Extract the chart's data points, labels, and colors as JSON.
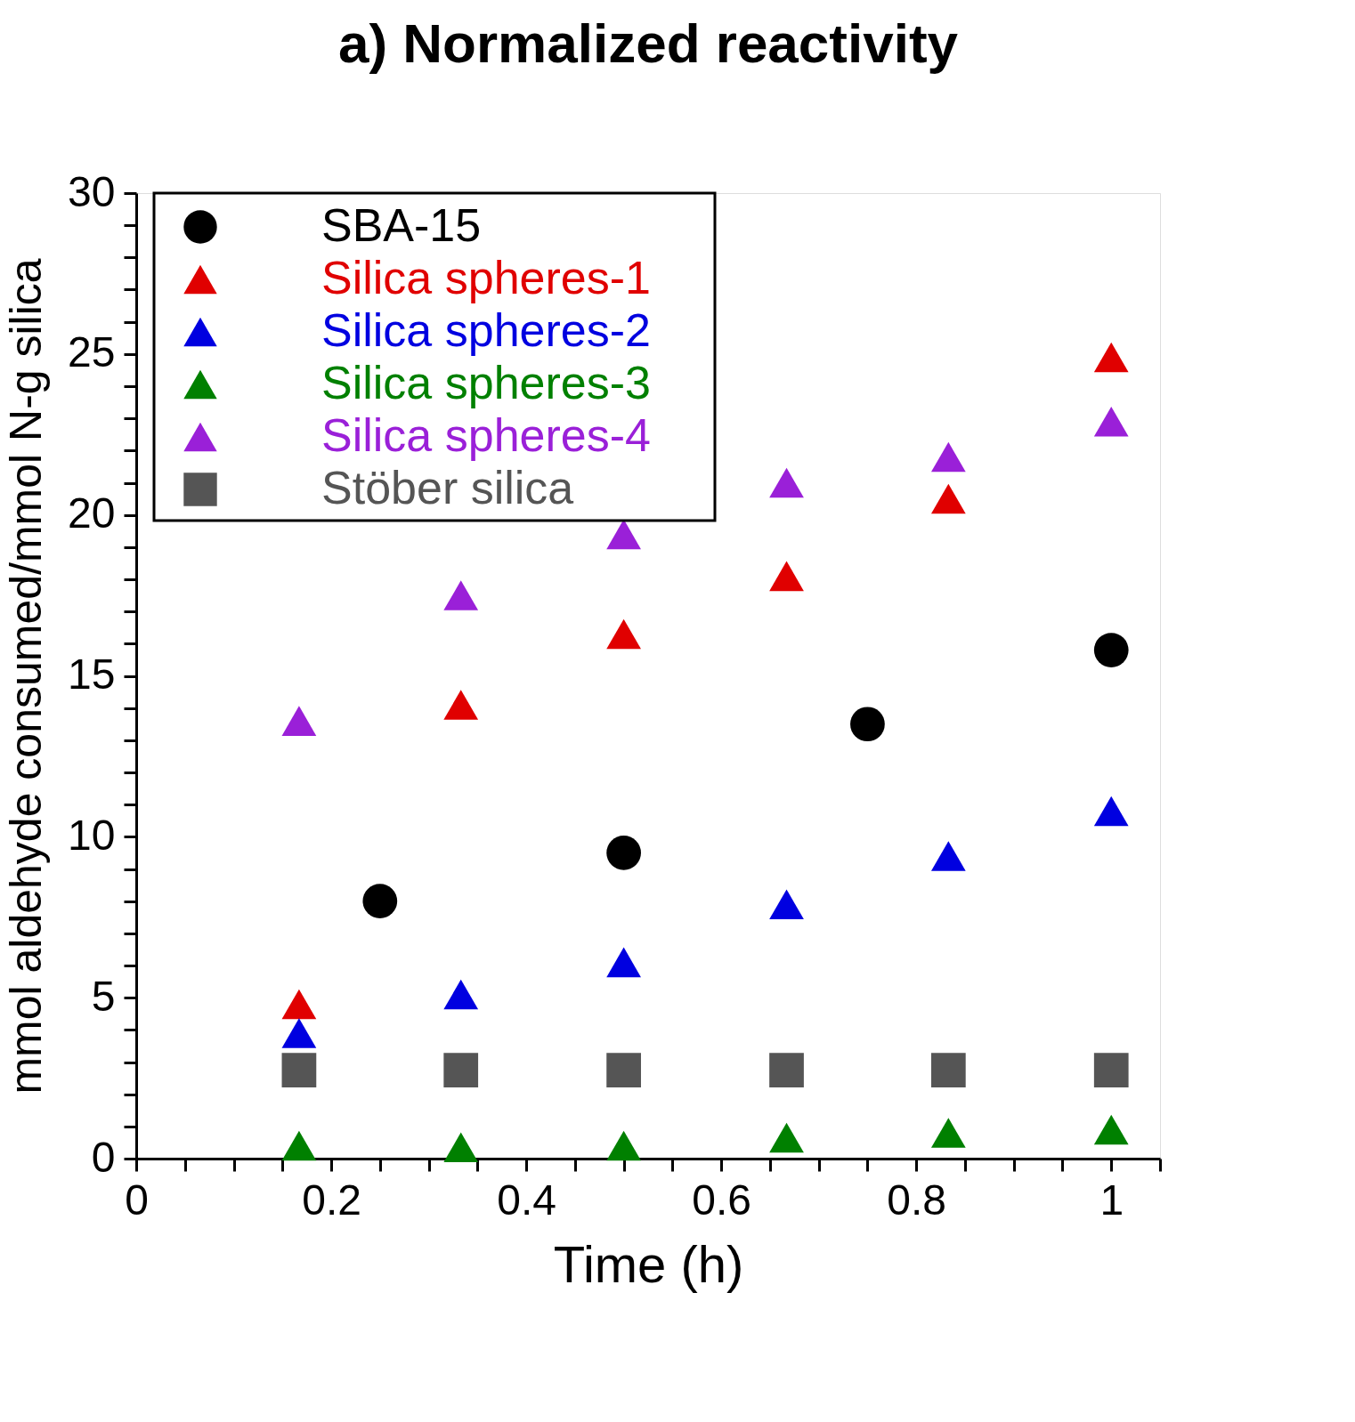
{
  "chart_data": {
    "type": "scatter",
    "title": "a) Normalized reactivity",
    "xlabel": "Time (h)",
    "ylabel": "mmol aldehyde consumed/mmol N-g silica",
    "xlim": [
      0,
      1.05
    ],
    "ylim": [
      0,
      30
    ],
    "xticks": [
      0,
      {
        "value": 0.05,
        "label": null
      },
      {
        "value": 0.1,
        "label": null
      },
      {
        "value": 0.15,
        "label": null
      },
      {
        "value": 0.2,
        "label": "0.2"
      },
      {
        "value": 0.25,
        "label": null
      },
      {
        "value": 0.3,
        "label": null
      },
      {
        "value": 0.35,
        "label": null
      },
      {
        "value": 0.4,
        "label": "0.4"
      },
      {
        "value": 0.45,
        "label": null
      },
      {
        "value": 0.5,
        "label": null
      },
      {
        "value": 0.55,
        "label": null
      },
      {
        "value": 0.6,
        "label": "0.6"
      },
      {
        "value": 0.65,
        "label": null
      },
      {
        "value": 0.7,
        "label": null
      },
      {
        "value": 0.75,
        "label": null
      },
      {
        "value": 0.8,
        "label": "0.8"
      },
      {
        "value": 0.85,
        "label": null
      },
      {
        "value": 0.9,
        "label": null
      },
      {
        "value": 0.95,
        "label": null
      },
      1,
      {
        "value": 1.05,
        "label": null
      }
    ],
    "yticks": [
      0,
      {
        "value": 1,
        "label": null
      },
      {
        "value": 2,
        "label": null
      },
      {
        "value": 3,
        "label": null
      },
      {
        "value": 4,
        "label": null
      },
      5,
      {
        "value": 6,
        "label": null
      },
      {
        "value": 7,
        "label": null
      },
      {
        "value": 8,
        "label": null
      },
      {
        "value": 9,
        "label": null
      },
      10,
      {
        "value": 11,
        "label": null
      },
      {
        "value": 12,
        "label": null
      },
      {
        "value": 13,
        "label": null
      },
      {
        "value": 14,
        "label": null
      },
      15,
      {
        "value": 16,
        "label": null
      },
      {
        "value": 17,
        "label": null
      },
      {
        "value": 18,
        "label": null
      },
      {
        "value": 19,
        "label": null
      },
      20,
      {
        "value": 21,
        "label": null
      },
      {
        "value": 22,
        "label": null
      },
      {
        "value": 23,
        "label": null
      },
      {
        "value": 24,
        "label": null
      },
      25,
      {
        "value": 26,
        "label": null
      },
      {
        "value": 27,
        "label": null
      },
      {
        "value": 28,
        "label": null
      },
      {
        "value": 29,
        "label": null
      },
      30
    ],
    "grid": false,
    "legend": "top left",
    "series": [
      {
        "name": "SBA-15",
        "color": "#000000",
        "marker": "circle",
        "x": [
          0.25,
          0.5,
          0.75,
          1
        ],
        "values": [
          8.0,
          9.5,
          13.5,
          15.8
        ]
      },
      {
        "name": "Silica spheres-1",
        "color": "#e00000",
        "marker": "triangle",
        "x": [
          0.167,
          0.333,
          0.5,
          0.667,
          0.833,
          1
        ],
        "values": [
          4.8,
          14.1,
          16.3,
          18.1,
          20.5,
          24.9
        ]
      },
      {
        "name": "Silica spheres-2",
        "color": "#0000e0",
        "marker": "triangle",
        "x": [
          0.167,
          0.333,
          0.5,
          0.667,
          0.833,
          1
        ],
        "values": [
          3.9,
          5.1,
          6.1,
          7.9,
          9.4,
          10.8
        ]
      },
      {
        "name": "Silica spheres-3",
        "color": "#008000",
        "marker": "triangle",
        "x": [
          0.167,
          0.333,
          0.5,
          0.667,
          0.833,
          1
        ],
        "values": [
          0.4,
          0.35,
          0.4,
          0.65,
          0.8,
          0.9
        ]
      },
      {
        "name": "Silica spheres-4",
        "color": "#9a20d8",
        "marker": "triangle",
        "x": [
          0.167,
          0.333,
          0.5,
          0.667,
          0.833,
          1
        ],
        "values": [
          13.6,
          17.5,
          19.4,
          21.0,
          21.8,
          22.9
        ]
      },
      {
        "name": "Stöber silica",
        "color": "#555555",
        "marker": "square",
        "x": [
          0.167,
          0.333,
          0.5,
          0.667,
          0.833,
          1
        ],
        "values": [
          2.75,
          2.75,
          2.75,
          2.75,
          2.75,
          2.75
        ]
      }
    ]
  }
}
